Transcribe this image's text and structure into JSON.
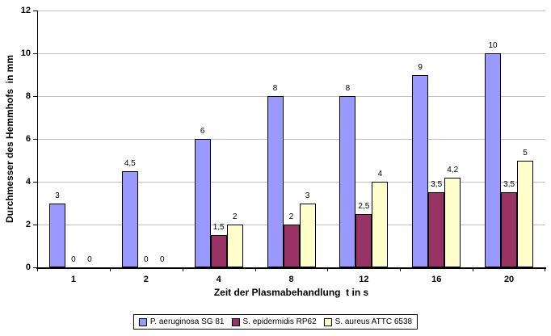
{
  "chart_data": {
    "type": "bar",
    "title": "",
    "xlabel": "Zeit der Plasmabehandlung  t in s",
    "ylabel": "Durchmesser des Hemmhofs  in mm",
    "categories": [
      "1",
      "2",
      "4",
      "8",
      "12",
      "16",
      "20"
    ],
    "series": [
      {
        "name": "P. aeruginosa SG 81",
        "color": "#9999FF",
        "values": [
          3,
          4.5,
          6,
          8,
          8,
          9,
          10
        ],
        "labels": [
          "3",
          "4,5",
          "6",
          "8",
          "8",
          "9",
          "10"
        ]
      },
      {
        "name": "S. epidermidis RP62",
        "color": "#993366",
        "values": [
          0,
          0,
          1.5,
          2,
          2.5,
          3.5,
          3.5
        ],
        "labels": [
          "0",
          "0",
          "1,5",
          "2",
          "2,5",
          "3,5",
          "3,5"
        ]
      },
      {
        "name": "S. aureus ATTC 6538",
        "color": "#FFFFCC",
        "values": [
          0,
          0,
          2,
          3,
          4,
          4.2,
          5
        ],
        "labels": [
          "0",
          "0",
          "2",
          "3",
          "4",
          "4,2",
          "5"
        ]
      }
    ],
    "ylim": [
      0,
      12
    ],
    "yticks": [
      0,
      2,
      4,
      6,
      8,
      10,
      12
    ],
    "ytick_labels": [
      "0",
      "2",
      "4",
      "6",
      "8",
      "10",
      "12"
    ],
    "grid": true,
    "legend_position": "bottom",
    "colors": {
      "background": "#FFFFFF",
      "gridline": "#C0C0C0",
      "axis": "#000000",
      "bar_border": "#000000",
      "text": "#000000"
    }
  }
}
